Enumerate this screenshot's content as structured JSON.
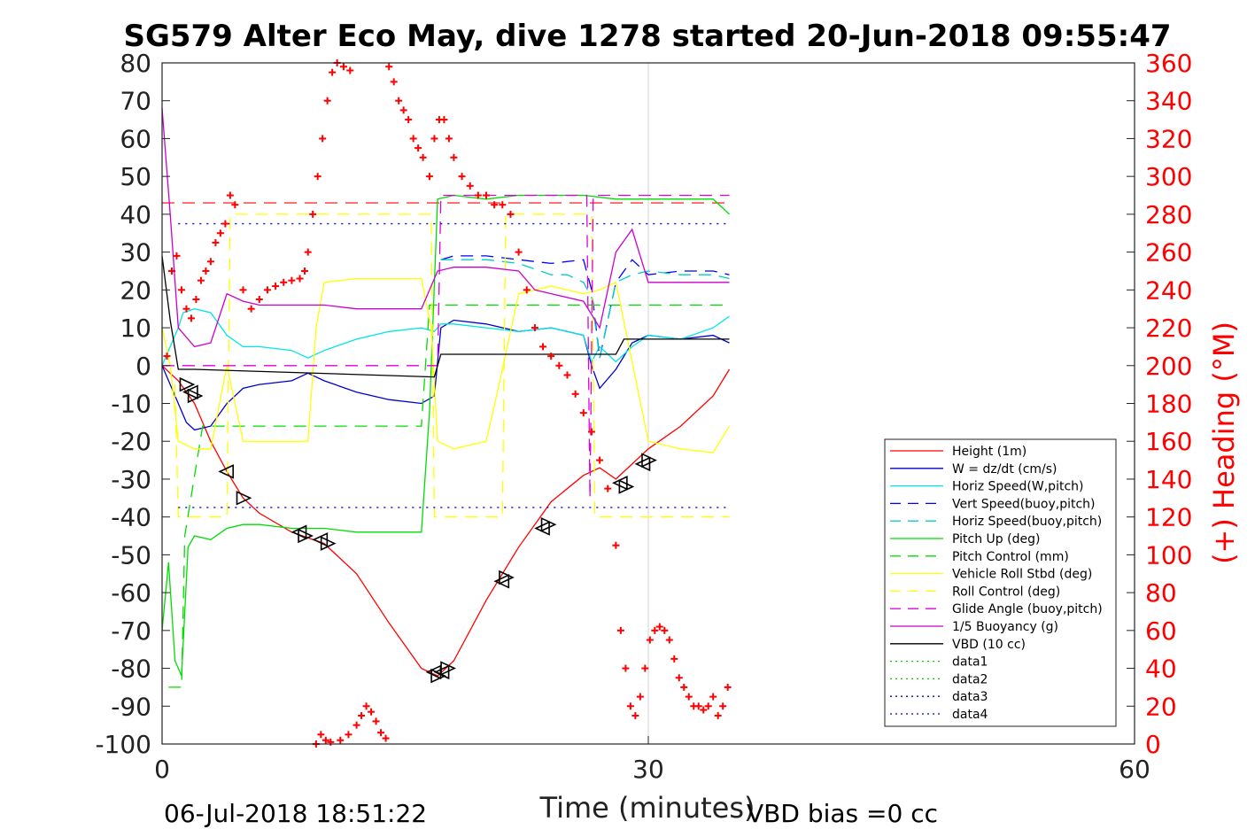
{
  "chart_data": {
    "type": "line",
    "title": "SG579 Alter Eco May, dive 1278 started 20-Jun-2018 09:55:47",
    "xlabel": "Time (minutes)",
    "ylabel": "",
    "y2label": "(+) Heading (°M)",
    "xlim": [
      0,
      60
    ],
    "ylim": [
      -100,
      80
    ],
    "y2lim": [
      0,
      360
    ],
    "xticks": [
      0,
      30,
      60
    ],
    "yticks": [
      -100,
      -90,
      -80,
      -70,
      -60,
      -50,
      -40,
      -30,
      -20,
      -10,
      0,
      10,
      20,
      30,
      40,
      50,
      60,
      70,
      80
    ],
    "y2ticks": [
      0,
      20,
      40,
      60,
      80,
      100,
      120,
      140,
      160,
      180,
      200,
      220,
      240,
      260,
      280,
      300,
      320,
      340,
      360
    ],
    "grid": "x only at 30",
    "legend_position": "bottom-right",
    "footer_left": "06-Jul-2018 18:51:22",
    "footer_right": "VBD bias =0 cc",
    "colors": {
      "height": "#ff0000",
      "w": "#0000cc",
      "horiz": "#00e5e5",
      "vert_buoy": "#0000ff",
      "horiz_buoy": "#00cccc",
      "pitch_up": "#00dd00",
      "pitch_ctrl": "#00dd00",
      "roll": "#ffff00",
      "roll_ctrl": "#ffff00",
      "glide": "#dd00dd",
      "buoy": "#cc00cc",
      "vbd": "#000000",
      "heading": "#ff0000"
    },
    "series": [
      {
        "name": "Height (1m)",
        "style": "solid",
        "color": "#ff0000",
        "x": [
          0,
          1,
          2,
          3,
          4,
          5,
          6,
          8,
          10,
          12,
          14,
          16,
          17,
          18,
          20,
          22,
          24,
          26,
          27,
          28,
          30,
          32,
          34,
          35
        ],
        "y": [
          0,
          -4,
          -10,
          -20,
          -28,
          -35,
          -39,
          -44,
          -47,
          -55,
          -68,
          -80,
          -82,
          -78,
          -62,
          -48,
          -36,
          -29,
          -27,
          -30,
          -22,
          -16,
          -8,
          -1
        ]
      },
      {
        "name": "W = dz/dt (cm/s)",
        "style": "solid",
        "color": "#0000cc",
        "x": [
          0,
          1,
          1.5,
          2,
          3,
          4,
          5,
          6,
          8,
          9,
          10,
          12,
          14,
          16,
          16.8,
          17.2,
          18,
          20,
          22,
          24,
          25,
          26,
          26.5,
          27,
          28,
          29,
          30,
          32,
          34,
          35
        ],
        "y": [
          0,
          -10,
          -15,
          -17,
          -16,
          -10,
          -6,
          -5,
          -4,
          -2,
          -4,
          -7,
          -9,
          -10,
          -8,
          10,
          12,
          11,
          9,
          10,
          9,
          8,
          0,
          -6,
          -1,
          6,
          8,
          7,
          8,
          6
        ]
      },
      {
        "name": "Horiz Speed(W,pitch)",
        "style": "solid",
        "color": "#00e5e5",
        "x": [
          0,
          1,
          1.3,
          2,
          3,
          4,
          5,
          6,
          8,
          9,
          10,
          12,
          14,
          16,
          16.8,
          17.2,
          18,
          20,
          22,
          24,
          25,
          26,
          26.5,
          27,
          28,
          29,
          30,
          32,
          34,
          35
        ],
        "y": [
          0,
          10,
          14,
          15,
          14,
          8,
          5,
          5,
          4,
          2,
          4,
          7,
          9,
          10,
          9,
          11,
          11,
          10,
          9,
          10,
          9,
          8,
          1,
          5,
          1,
          5,
          8,
          7,
          10,
          13
        ]
      },
      {
        "name": "Vert Speed(buoy,pitch)",
        "style": "dash",
        "color": "#0000ff",
        "x": [
          17.2,
          18,
          20,
          22,
          24,
          26,
          26.5,
          27,
          28,
          29,
          30,
          32,
          34,
          35
        ],
        "y": [
          28,
          29,
          29,
          28,
          27,
          28,
          20,
          2,
          22,
          28,
          24,
          25,
          25,
          24
        ]
      },
      {
        "name": "Horiz Speed(buoy,pitch)",
        "style": "dash",
        "color": "#00cccc",
        "x": [
          17.2,
          18,
          20,
          22,
          24,
          25,
          26,
          26.5,
          27,
          28,
          29,
          30,
          32,
          34,
          35
        ],
        "y": [
          28,
          28,
          28,
          27,
          24,
          24,
          22,
          18,
          2,
          22,
          24,
          25,
          24,
          24,
          23
        ]
      },
      {
        "name": "Pitch Up (deg)",
        "style": "solid",
        "color": "#00dd00",
        "x": [
          0,
          0.4,
          0.8,
          1.2,
          1.6,
          2,
          3,
          4,
          5,
          6,
          8,
          10,
          12,
          14,
          16,
          16.5,
          17,
          18,
          20,
          22,
          24,
          26,
          28,
          30,
          32,
          34,
          35
        ],
        "y": [
          -70,
          -52,
          -78,
          -82,
          -48,
          -45,
          -46,
          -43,
          -42,
          -42,
          -43,
          -43,
          -44,
          -44,
          -44,
          -12,
          44,
          45,
          44,
          45,
          45,
          45,
          44,
          44,
          44,
          44,
          40
        ]
      },
      {
        "name": "Pitch Control (mm)",
        "style": "dash",
        "color": "#00dd00",
        "x": [
          0.4,
          1.2,
          1.4,
          2.5,
          4,
          16,
          16.5,
          17,
          35
        ],
        "y": [
          -85,
          -85,
          -45,
          -16,
          -16,
          -16,
          16,
          16,
          16
        ]
      },
      {
        "name": "Vehicle Roll Stbd (deg)",
        "style": "solid",
        "color": "#ffff00",
        "x": [
          0,
          0.5,
          1,
          2,
          3,
          4,
          5,
          8,
          9,
          9.5,
          10,
          12,
          14,
          16,
          16.6,
          17,
          18,
          20,
          21,
          22,
          24,
          26,
          27,
          28,
          30,
          32,
          34,
          35
        ],
        "y": [
          10,
          0,
          -20,
          -22,
          -22,
          0,
          -20,
          -20,
          -20,
          10,
          22,
          23,
          23,
          23,
          10,
          -20,
          -22,
          -20,
          -1,
          19,
          21,
          19,
          20,
          22,
          -20,
          -22,
          -23,
          -16
        ]
      },
      {
        "name": "Roll Control (deg)",
        "style": "dash",
        "color": "#ffff00",
        "x": [
          0.8,
          1.0,
          4,
          4.2,
          9.5,
          9.7,
          16.6,
          16.8,
          21,
          21.2,
          26.5,
          26.7,
          35
        ],
        "y": [
          -5,
          -40,
          -40,
          40,
          40,
          40,
          40,
          -40,
          -40,
          40,
          40,
          -40,
          -40
        ]
      },
      {
        "name": "Glide Angle (buoy,pitch)",
        "style": "dash",
        "color": "#dd00dd",
        "x": [
          0,
          17,
          17.2,
          26.2,
          26.4,
          26.6,
          35
        ],
        "y": [
          0,
          0,
          45,
          45,
          -35,
          45,
          45
        ]
      },
      {
        "name": "1/5 Buoyancy (g)",
        "style": "solid",
        "color": "#cc00cc",
        "x": [
          0,
          0.5,
          1,
          2,
          3,
          4,
          5,
          6,
          8,
          10,
          12,
          14,
          16,
          17,
          18,
          20,
          22,
          23,
          24,
          26,
          27,
          28,
          29,
          30,
          32,
          34,
          35
        ],
        "y": [
          68,
          40,
          10,
          5,
          6,
          19,
          17,
          16,
          16,
          16,
          15,
          15,
          15,
          25,
          26,
          26,
          25,
          20,
          19,
          17,
          10,
          30,
          36,
          22,
          22,
          22,
          22
        ]
      },
      {
        "name": "VBD (10 cc)",
        "style": "solid",
        "color": "#000000",
        "x": [
          0,
          0.5,
          1,
          2,
          16.8,
          17.2,
          18,
          22,
          28,
          28.5,
          29,
          35
        ],
        "y": [
          29,
          12,
          -1,
          -1,
          -3,
          3,
          3,
          3,
          3,
          7,
          7,
          7
        ]
      },
      {
        "name": "data1",
        "style": "dot",
        "color": "#00cc00",
        "x": [],
        "y": []
      },
      {
        "name": "data2",
        "style": "dot",
        "color": "#00cc00",
        "x": [],
        "y": []
      },
      {
        "name": "data3",
        "style": "dot",
        "color": "#0000cc",
        "x": [],
        "y": [],
        "hline": 37.5
      },
      {
        "name": "data4",
        "style": "dot",
        "color": "#0000cc",
        "x": [],
        "y": [],
        "hline": -37.5
      }
    ],
    "reference_lines": [
      {
        "y": 43,
        "style": "dash",
        "color": "#ff0000"
      }
    ],
    "heading_points": {
      "axis": "y2",
      "x": [
        0.3,
        0.6,
        0.9,
        1.2,
        1.5,
        1.8,
        2.1,
        2.4,
        2.7,
        3.0,
        3.3,
        3.6,
        3.9,
        4.2,
        4.5,
        5,
        5.5,
        6,
        6.5,
        7,
        7.5,
        8,
        8.5,
        8.8,
        9,
        9.3,
        9.6,
        9.9,
        10.2,
        10.5,
        10.8,
        11.2,
        11.6,
        14,
        14.3,
        14.6,
        14.9,
        15.2,
        15.5,
        15.8,
        16.1,
        16.5,
        16.8,
        17.1,
        17.4,
        17.7,
        18,
        18.5,
        19,
        19.5,
        20,
        20.5,
        21,
        21.5,
        22,
        22.5,
        23,
        23.5,
        24,
        24.5,
        25,
        25.5,
        26,
        26.5,
        27,
        27.5,
        28,
        28.3,
        28.6,
        28.9,
        29.2,
        29.5,
        29.8,
        30.1,
        30.4,
        30.7,
        31,
        31.3,
        31.6,
        31.9,
        32.2,
        32.5,
        32.8,
        33.1,
        33.4,
        33.7,
        34,
        34.3,
        34.6,
        34.9,
        9.5,
        9.8,
        10.1,
        10.4,
        11,
        11.5,
        12,
        12.3,
        12.6,
        12.9,
        13.2,
        13.5,
        13.8
      ],
      "y": [
        205,
        250,
        258,
        240,
        230,
        225,
        235,
        245,
        250,
        255,
        265,
        270,
        275,
        290,
        285,
        240,
        230,
        235,
        240,
        242,
        244,
        245,
        246,
        250,
        260,
        280,
        300,
        320,
        340,
        355,
        360,
        358,
        356,
        358,
        350,
        340,
        335,
        330,
        320,
        315,
        310,
        300,
        320,
        330,
        330,
        320,
        310,
        300,
        295,
        290,
        290,
        285,
        285,
        280,
        260,
        240,
        220,
        210,
        205,
        200,
        195,
        185,
        175,
        165,
        150,
        135,
        105,
        60,
        40,
        20,
        15,
        25,
        40,
        55,
        60,
        62,
        60,
        55,
        45,
        35,
        30,
        25,
        20,
        20,
        18,
        20,
        25,
        15,
        20,
        30,
        0,
        5,
        2,
        1,
        2,
        5,
        10,
        15,
        20,
        17,
        12,
        6,
        3
      ]
    },
    "markers": {
      "description": "triangles along height track",
      "x": [
        1.5,
        1.8,
        2,
        4,
        5,
        8.5,
        8.8,
        9.8,
        10.2,
        16.8,
        17,
        17.3,
        17.6,
        21,
        21.2,
        23.5,
        23.8,
        28.3,
        28.6,
        29.7,
        30
      ],
      "y": [
        -5,
        -7,
        -8,
        -28,
        -35,
        -44,
        -45,
        -46,
        -47,
        -81,
        -82,
        -81,
        -80,
        -57,
        -56,
        -43,
        -42,
        -31,
        -32,
        -26,
        -25
      ]
    }
  }
}
